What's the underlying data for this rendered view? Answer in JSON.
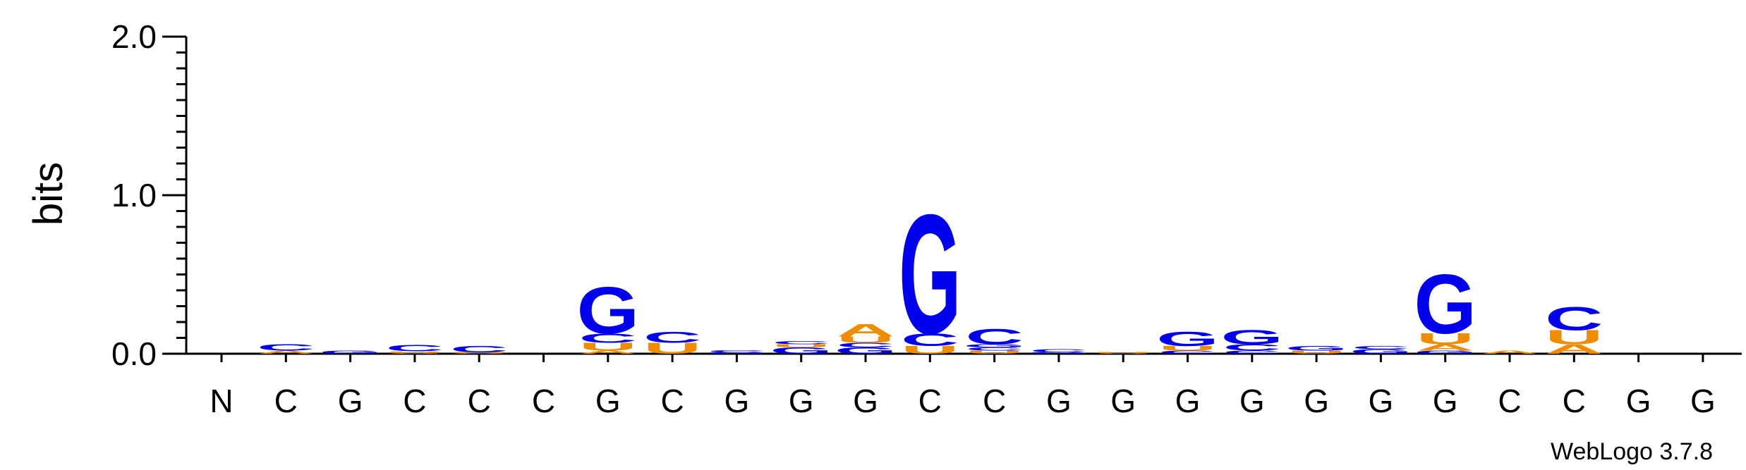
{
  "chart_data": {
    "type": "sequence-logo",
    "ylabel": "bits",
    "ylim": [
      0,
      2.0
    ],
    "yticks": [
      "0.0",
      "1.0",
      "2.0"
    ],
    "positions": [
      "N",
      "C",
      "G",
      "C",
      "C",
      "C",
      "G",
      "C",
      "G",
      "G",
      "G",
      "C",
      "C",
      "G",
      "G",
      "G",
      "G",
      "G",
      "G",
      "G",
      "C",
      "C",
      "G",
      "G"
    ],
    "colors": {
      "G": "#0000ee",
      "C": "#0000ee",
      "U": "#f08c00",
      "A": "#f08c00"
    },
    "stacks": [
      [],
      [
        [
          "A",
          0.02
        ],
        [
          "C",
          0.04
        ]
      ],
      [
        [
          "G",
          0.02
        ]
      ],
      [
        [
          "U",
          0.015
        ],
        [
          "C",
          0.04
        ]
      ],
      [
        [
          "U",
          0.01
        ],
        [
          "C",
          0.04
        ]
      ],
      [],
      [
        [
          "A",
          0.02
        ],
        [
          "U",
          0.05
        ],
        [
          "C",
          0.06
        ],
        [
          "G",
          0.3
        ]
      ],
      [
        [
          "U",
          0.07
        ],
        [
          "C",
          0.07
        ]
      ],
      [
        [
          "G",
          0.01
        ],
        [
          "C",
          0.015
        ]
      ],
      [
        [
          "G",
          0.04
        ],
        [
          "U",
          0.02
        ],
        [
          "C",
          0.02
        ]
      ],
      [
        [
          "G",
          0.04
        ],
        [
          "C",
          0.03
        ],
        [
          "U",
          0.04
        ],
        [
          "A",
          0.08
        ]
      ],
      [
        [
          "U",
          0.05
        ],
        [
          "C",
          0.08
        ],
        [
          "G",
          0.77
        ]
      ],
      [
        [
          "U",
          0.02
        ],
        [
          "C",
          0.02
        ],
        [
          "G",
          0.02
        ],
        [
          "C",
          0.1
        ]
      ],
      [
        [
          "G",
          0.01
        ],
        [
          "C",
          0.02
        ]
      ],
      [
        [
          "U",
          0.01
        ]
      ],
      [
        [
          "C",
          0.02
        ],
        [
          "U",
          0.03
        ],
        [
          "G",
          0.09
        ]
      ],
      [
        [
          "C",
          0.02
        ],
        [
          "C",
          0.04
        ],
        [
          "G",
          0.09
        ]
      ],
      [
        [
          "U",
          0.02
        ],
        [
          "G",
          0.03
        ]
      ],
      [
        [
          "G",
          0.03
        ],
        [
          "C",
          0.02
        ]
      ],
      [
        [
          "G",
          0.02
        ],
        [
          "A",
          0.04
        ],
        [
          "U",
          0.07
        ],
        [
          "G",
          0.38
        ]
      ],
      [
        [
          "A",
          0.02
        ]
      ],
      [
        [
          "A",
          0.06
        ],
        [
          "U",
          0.09
        ],
        [
          "C",
          0.15
        ]
      ],
      [],
      []
    ],
    "credit": "WebLogo 3.7.8"
  }
}
